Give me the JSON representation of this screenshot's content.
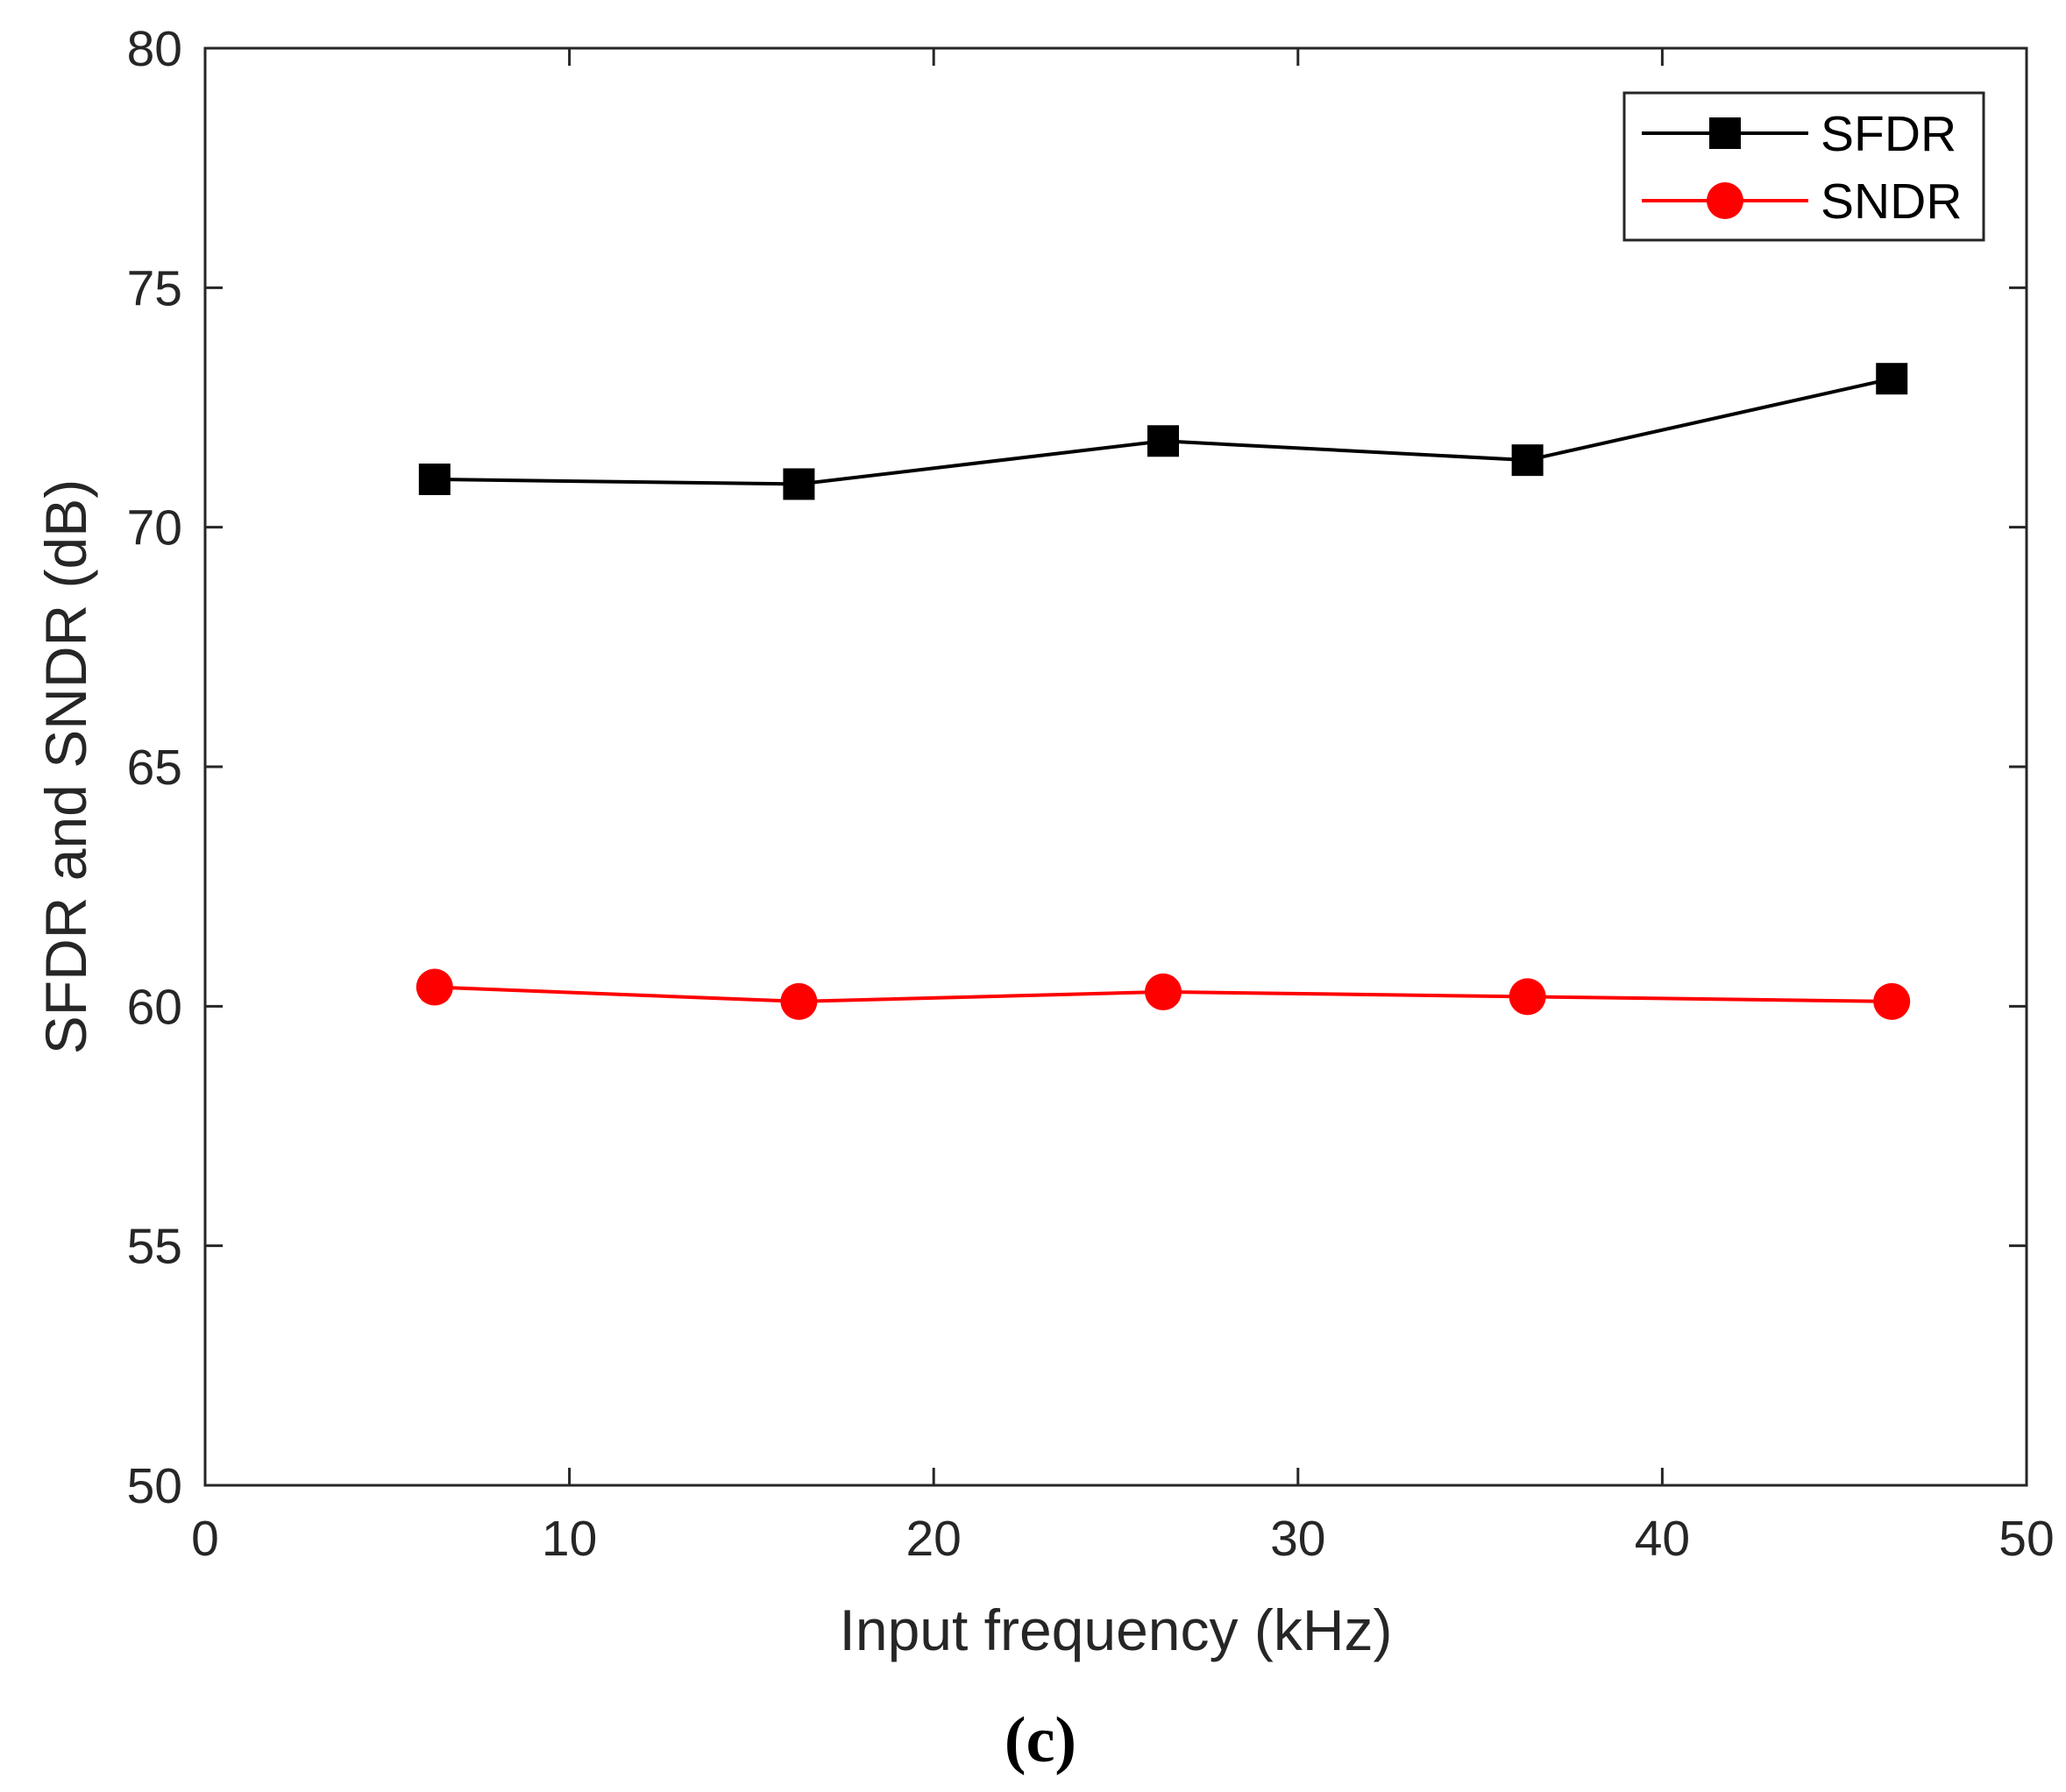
{
  "chart_data": {
    "type": "line",
    "title": "",
    "xlabel": "Input frequency (kHz)",
    "ylabel": "SFDR and SNDR (dB)",
    "xlim": [
      0,
      50
    ],
    "ylim": [
      50,
      80
    ],
    "xticks": [
      "0",
      "10",
      "20",
      "30",
      "40",
      "50"
    ],
    "yticks": [
      "50",
      "55",
      "60",
      "65",
      "70",
      "75",
      "80"
    ],
    "grid": false,
    "legend_position": "top-right",
    "x": [
      6.3,
      16.3,
      26.3,
      36.3,
      46.3
    ],
    "series": [
      {
        "name": "SFDR",
        "color": "#000000",
        "marker": "square",
        "values": [
          71.0,
          70.9,
          71.8,
          71.4,
          73.1
        ]
      },
      {
        "name": "SNDR",
        "color": "#ff0000",
        "marker": "circle",
        "values": [
          60.4,
          60.1,
          60.3,
          60.2,
          60.1
        ]
      }
    ]
  },
  "caption": "(c)"
}
